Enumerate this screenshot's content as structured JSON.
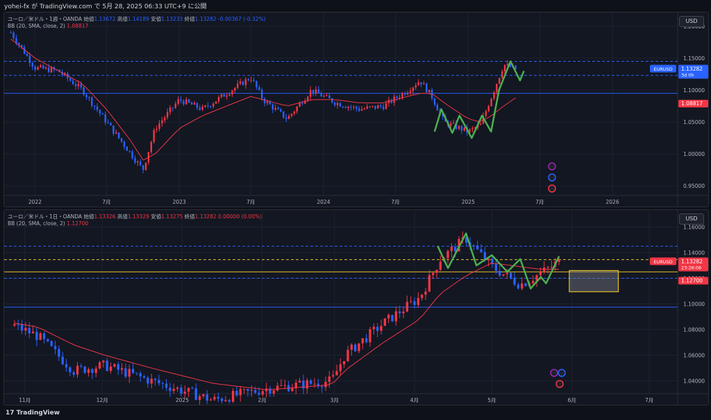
{
  "header": {
    "title": "yohei-fx が TradingView.com で 5月 28, 2025 06:33 UTC+9 に公開"
  },
  "footer": {
    "brand": "TradingView",
    "brand_mark": "17"
  },
  "colors": {
    "bg": "#131722",
    "up": "#f23645",
    "down": "#2962ff",
    "bb": "#f23645",
    "green": "#4caf50",
    "yellow": "#e6c229",
    "blueLine": "#2962ff"
  },
  "pane1": {
    "legend": {
      "symbol": "ユーロ／米ドル・1週・OANDA",
      "o_label": "始値",
      "o": "1.13672",
      "h_label": "高値",
      "h": "1.14189",
      "l_label": "安値",
      "l": "1.13233",
      "c_label": "終値",
      "c": "1.13282",
      "chg": "-0.00367 (-0.32%)",
      "bb_label": "BB (20, SMA, close, 2)",
      "bb_val": "1.08817"
    },
    "currency_button": "USD",
    "price_ticks": [
      "1.20000",
      "1.15000",
      "1.10000",
      "1.05000",
      "1.00000",
      "0.95000"
    ],
    "time_ticks": [
      "2022",
      "7月",
      "2023",
      "7月",
      "2024",
      "7月",
      "2025",
      "7月",
      "2026"
    ],
    "price_tag": {
      "symbol": "EURUSD",
      "price": "1.13282",
      "countdown": "3d 0h"
    },
    "bb_tag": "1.08817"
  },
  "pane2": {
    "legend": {
      "symbol": "ユーロ／米ドル・1日・OANDA",
      "o_label": "始値",
      "o": "1.13326",
      "h_label": "高値",
      "h": "1.13329",
      "l_label": "安値",
      "l": "1.13275",
      "c_label": "終値",
      "c": "1.13282",
      "chg": "0.00000 (0.00%)",
      "bb_label": "BB (20, SMA, close, 2)",
      "bb_val": "1.12700"
    },
    "currency_button": "USD",
    "price_ticks": [
      "1.16000",
      "1.14000",
      "1.12000",
      "1.10000",
      "1.08000",
      "1.06000",
      "1.04000"
    ],
    "time_ticks": [
      "11月",
      "12月",
      "2025",
      "2月",
      "3月",
      "4月",
      "5月",
      "6月",
      "7月"
    ],
    "price_tag": {
      "symbol": "EURUSD",
      "price": "1.13282",
      "countdown": "23:26:06"
    },
    "bb_tag": "1.12700"
  },
  "chart_data": [
    {
      "type": "candlestick",
      "title": "ユーロ／米ドル・1週・OANDA",
      "ylim": [
        0.935,
        1.215
      ],
      "x": [
        "2021-11",
        "2022-01",
        "2022-03",
        "2022-05",
        "2022-07",
        "2022-09",
        "2022-10",
        "2022-11",
        "2023-01",
        "2023-03",
        "2023-05",
        "2023-07",
        "2023-08",
        "2023-10",
        "2023-12",
        "2024-02",
        "2024-04",
        "2024-06",
        "2024-08",
        "2024-09",
        "2024-10",
        "2024-11",
        "2025-01",
        "2025-02",
        "2025-03",
        "2025-04",
        "2025-05"
      ],
      "close": [
        1.19,
        1.135,
        1.13,
        1.1,
        1.05,
        1.0,
        0.975,
        1.04,
        1.085,
        1.07,
        1.095,
        1.12,
        1.085,
        1.055,
        1.1,
        1.08,
        1.07,
        1.075,
        1.1,
        1.115,
        1.09,
        1.05,
        1.035,
        1.045,
        1.09,
        1.14,
        1.133
      ],
      "bb_midline": [
        1.18,
        1.15,
        1.13,
        1.11,
        1.07,
        1.02,
        0.99,
        1.0,
        1.04,
        1.06,
        1.075,
        1.09,
        1.085,
        1.075,
        1.085,
        1.085,
        1.08,
        1.08,
        1.09,
        1.095,
        1.095,
        1.08,
        1.055,
        1.05,
        1.06,
        1.075,
        1.088
      ],
      "horizontal_lines": [
        {
          "y": 1.145,
          "style": "dashed"
        },
        {
          "y": 1.123,
          "style": "dashed"
        },
        {
          "y": 1.095,
          "style": "solid"
        }
      ]
    },
    {
      "type": "candlestick",
      "title": "ユーロ／米ドル・1日・OANDA",
      "ylim": [
        1.03,
        1.17
      ],
      "x": [
        "2024-10-28",
        "2024-11-06",
        "2024-11-20",
        "2024-12-02",
        "2024-12-20",
        "2025-01-13",
        "2025-02-03",
        "2025-02-28",
        "2025-03-05",
        "2025-03-20",
        "2025-04-03",
        "2025-04-11",
        "2025-04-21",
        "2025-05-01",
        "2025-05-12",
        "2025-05-20",
        "2025-05-27"
      ],
      "close": [
        1.083,
        1.075,
        1.048,
        1.052,
        1.04,
        1.025,
        1.034,
        1.04,
        1.06,
        1.085,
        1.105,
        1.135,
        1.151,
        1.129,
        1.115,
        1.124,
        1.133
      ],
      "bb_midline": [
        1.085,
        1.082,
        1.068,
        1.06,
        1.05,
        1.038,
        1.033,
        1.037,
        1.048,
        1.07,
        1.088,
        1.108,
        1.122,
        1.132,
        1.129,
        1.127,
        1.127
      ],
      "horizontal_lines": [
        {
          "y": 1.145,
          "style": "dashed"
        },
        {
          "y": 1.1345,
          "style": "dashed-yellow"
        },
        {
          "y": 1.125,
          "style": "solid-yellow"
        },
        {
          "y": 1.12,
          "style": "dashed"
        },
        {
          "y": 1.0975,
          "style": "solid"
        }
      ]
    }
  ]
}
